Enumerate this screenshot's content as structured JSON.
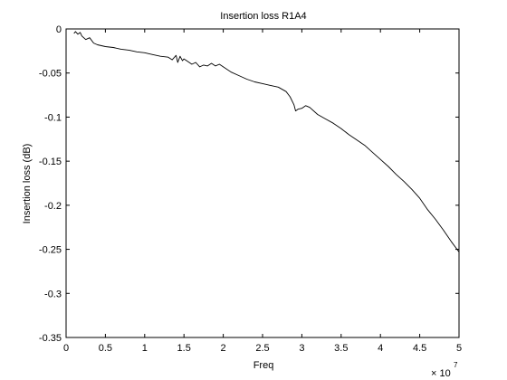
{
  "chart_data": {
    "type": "line",
    "title": "Insertion loss R1A4",
    "xlabel": "Freq",
    "ylabel": "Insertion loss (dB)",
    "x_exponent_label": "× 10",
    "x_exponent_power": "7",
    "x_multiplier": 10000000,
    "xlim": [
      0,
      5
    ],
    "ylim": [
      -0.35,
      0
    ],
    "x_tick_values": [
      0,
      0.5,
      1,
      1.5,
      2,
      2.5,
      3,
      3.5,
      4,
      4.5,
      5
    ],
    "x_tick_labels": [
      "0",
      "0.5",
      "1",
      "1.5",
      "2",
      "2.5",
      "3",
      "3.5",
      "4",
      "4.5",
      "5"
    ],
    "y_tick_values": [
      0,
      -0.05,
      -0.1,
      -0.15,
      -0.2,
      -0.25,
      -0.3,
      -0.35
    ],
    "y_tick_labels": [
      "0",
      "-0.05",
      "-0.1",
      "-0.15",
      "-0.2",
      "-0.25",
      "-0.3",
      "-0.35"
    ],
    "grid": false,
    "line_color": "#000000",
    "series": [
      {
        "x": [
          0.1,
          0.12,
          0.15,
          0.18,
          0.2,
          0.25,
          0.3,
          0.35,
          0.4,
          0.5,
          0.6,
          0.7,
          0.8,
          0.9,
          1.0,
          1.1,
          1.2,
          1.3,
          1.35,
          1.4,
          1.42,
          1.45,
          1.48,
          1.5,
          1.55,
          1.6,
          1.65,
          1.7,
          1.75,
          1.8,
          1.85,
          1.9,
          1.95,
          2.0,
          2.1,
          2.2,
          2.3,
          2.4,
          2.5,
          2.6,
          2.7,
          2.8,
          2.85,
          2.9,
          2.92,
          2.95,
          3.0,
          3.05,
          3.1,
          3.2,
          3.3,
          3.4,
          3.5,
          3.6,
          3.7,
          3.8,
          3.9,
          4.0,
          4.1,
          4.2,
          4.3,
          4.4,
          4.5,
          4.6,
          4.7,
          4.8,
          4.9,
          5.0
        ],
        "y": [
          -0.005,
          -0.003,
          -0.006,
          -0.004,
          -0.008,
          -0.012,
          -0.01,
          -0.016,
          -0.018,
          -0.02,
          -0.021,
          -0.023,
          -0.024,
          -0.026,
          -0.027,
          -0.029,
          -0.031,
          -0.032,
          -0.035,
          -0.03,
          -0.038,
          -0.031,
          -0.036,
          -0.034,
          -0.037,
          -0.04,
          -0.038,
          -0.043,
          -0.041,
          -0.042,
          -0.039,
          -0.042,
          -0.04,
          -0.043,
          -0.049,
          -0.053,
          -0.057,
          -0.06,
          -0.062,
          -0.064,
          -0.066,
          -0.071,
          -0.077,
          -0.086,
          -0.093,
          -0.091,
          -0.09,
          -0.087,
          -0.089,
          -0.097,
          -0.102,
          -0.107,
          -0.113,
          -0.12,
          -0.126,
          -0.132,
          -0.14,
          -0.148,
          -0.156,
          -0.165,
          -0.173,
          -0.182,
          -0.192,
          -0.205,
          -0.216,
          -0.228,
          -0.241,
          -0.253
        ]
      }
    ]
  }
}
